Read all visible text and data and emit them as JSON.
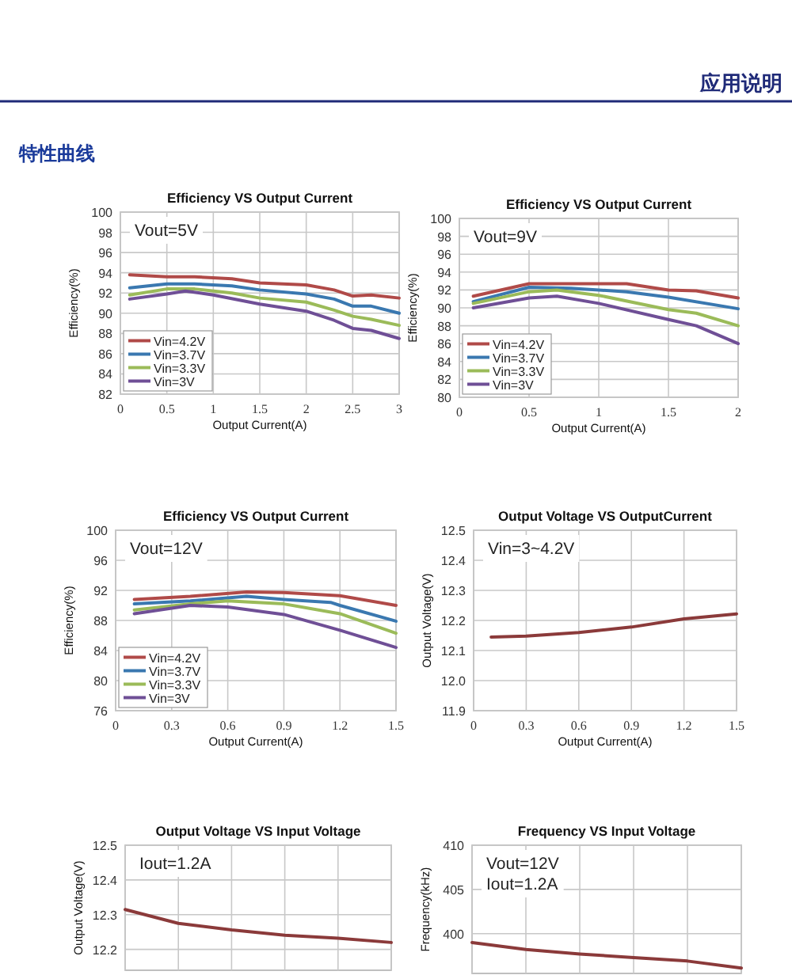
{
  "chart_data": [
    {
      "type": "other",
      "title": "应用说明",
      "annotations": [
        "特性曲线"
      ]
    },
    {
      "type": "line",
      "title": "Efficiency VS Output Current",
      "xlabel": "Output Current(A)",
      "ylabel": "Efficiency(%)",
      "xlim": [
        0,
        3
      ],
      "xticks": [
        0,
        0.5,
        1,
        1.5,
        2,
        2.5,
        3
      ],
      "ylim": [
        82,
        100
      ],
      "yticks": [
        82,
        84,
        86,
        88,
        90,
        92,
        94,
        96,
        98,
        100
      ],
      "grid": true,
      "legend": "bottom left",
      "annotations": [
        "Vout=5V"
      ],
      "series": [
        {
          "name": "Vin=4.2V",
          "color": "#b04a48",
          "x": [
            0.1,
            0.5,
            0.8,
            1.2,
            1.5,
            2.0,
            2.3,
            2.5,
            2.7,
            3
          ],
          "values": [
            93.8,
            93.6,
            93.6,
            93.4,
            93.0,
            92.8,
            92.3,
            91.7,
            91.8,
            91.5
          ]
        },
        {
          "name": "Vin=3.7V",
          "color": "#3a78b0",
          "x": [
            0.1,
            0.5,
            0.8,
            1.2,
            1.5,
            2.0,
            2.3,
            2.5,
            2.7,
            3
          ],
          "values": [
            92.5,
            92.9,
            92.9,
            92.7,
            92.3,
            91.9,
            91.4,
            90.7,
            90.7,
            90.0
          ]
        },
        {
          "name": "Vin=3.3V",
          "color": "#9bbb59",
          "x": [
            0.1,
            0.5,
            0.8,
            1.2,
            1.5,
            2.0,
            2.3,
            2.5,
            2.7,
            3
          ],
          "values": [
            91.8,
            92.4,
            92.4,
            92.0,
            91.5,
            91.1,
            90.3,
            89.7,
            89.4,
            88.8
          ]
        },
        {
          "name": "Vin=3V",
          "color": "#6f4f96",
          "x": [
            0.1,
            0.5,
            0.7,
            1.0,
            1.5,
            2.0,
            2.3,
            2.5,
            2.7,
            3
          ],
          "values": [
            91.4,
            91.9,
            92.2,
            91.8,
            90.9,
            90.2,
            89.3,
            88.5,
            88.3,
            87.5
          ]
        }
      ]
    },
    {
      "type": "line",
      "title": "Efficiency VS Output Current",
      "xlabel": "Output Current(A)",
      "ylabel": "Efficiency(%)",
      "xlim": [
        0,
        2
      ],
      "xticks": [
        0,
        0.5,
        1,
        1.5,
        2
      ],
      "ylim": [
        80,
        100
      ],
      "yticks": [
        80,
        82,
        84,
        86,
        88,
        90,
        92,
        94,
        96,
        98,
        100
      ],
      "grid": true,
      "legend": "bottom left",
      "annotations": [
        "Vout=9V"
      ],
      "series": [
        {
          "name": "Vin=4.2V",
          "color": "#b04a48",
          "x": [
            0.1,
            0.5,
            0.8,
            1.2,
            1.5,
            1.7,
            2
          ],
          "values": [
            91.3,
            92.7,
            92.7,
            92.7,
            92.0,
            91.9,
            91.1
          ]
        },
        {
          "name": "Vin=3.7V",
          "color": "#3a78b0",
          "x": [
            0.1,
            0.5,
            0.8,
            1.2,
            1.5,
            2
          ],
          "values": [
            90.7,
            92.3,
            92.2,
            91.8,
            91.2,
            89.9
          ]
        },
        {
          "name": "Vin=3.3V",
          "color": "#9bbb59",
          "x": [
            0.1,
            0.5,
            0.7,
            1.0,
            1.5,
            1.7,
            2
          ],
          "values": [
            90.5,
            91.8,
            92.0,
            91.4,
            89.8,
            89.4,
            88.0
          ]
        },
        {
          "name": "Vin=3V",
          "color": "#6f4f96",
          "x": [
            0.1,
            0.5,
            0.7,
            1.0,
            1.5,
            1.7,
            2
          ],
          "values": [
            90.0,
            91.1,
            91.3,
            90.5,
            88.7,
            88.0,
            86.0
          ]
        }
      ]
    },
    {
      "type": "line",
      "title": "Efficiency VS Output Current",
      "xlabel": "Output Current(A)",
      "ylabel": "Efficiency(%)",
      "xlim": [
        0,
        1.5
      ],
      "xticks": [
        0,
        0.3,
        0.6,
        0.9,
        1.2,
        1.5
      ],
      "ylim": [
        76,
        100
      ],
      "yticks": [
        76,
        80,
        84,
        88,
        92,
        96,
        100
      ],
      "grid": true,
      "legend": "bottom left",
      "annotations": [
        "Vout=12V"
      ],
      "series": [
        {
          "name": "Vin=4.2V",
          "color": "#b04a48",
          "x": [
            0.1,
            0.4,
            0.7,
            0.9,
            1.2,
            1.5
          ],
          "values": [
            90.8,
            91.2,
            91.8,
            91.7,
            91.3,
            90.0
          ]
        },
        {
          "name": "Vin=3.7V",
          "color": "#3a78b0",
          "x": [
            0.1,
            0.4,
            0.7,
            0.9,
            1.15,
            1.2,
            1.5
          ],
          "values": [
            90.2,
            90.6,
            91.2,
            90.8,
            90.4,
            90.0,
            87.9
          ]
        },
        {
          "name": "Vin=3.3V",
          "color": "#9bbb59",
          "x": [
            0.1,
            0.4,
            0.6,
            0.9,
            1.2,
            1.5
          ],
          "values": [
            89.4,
            90.2,
            90.6,
            90.2,
            88.9,
            86.3
          ]
        },
        {
          "name": "Vin=3V",
          "color": "#6f4f96",
          "x": [
            0.1,
            0.4,
            0.6,
            0.9,
            1.2,
            1.5
          ],
          "values": [
            88.9,
            90.0,
            89.8,
            88.8,
            86.7,
            84.4
          ]
        }
      ]
    },
    {
      "type": "line",
      "title": "Output Voltage VS OutputCurrent",
      "xlabel": "Output Current(A)",
      "ylabel": "Output Voltage(V)",
      "xlim": [
        0,
        1.5
      ],
      "xticks": [
        0,
        0.3,
        0.6,
        0.9,
        1.2,
        1.5
      ],
      "ylim": [
        11.9,
        12.5
      ],
      "yticks": [
        11.9,
        {
          "value": 12,
          "label": "12.0"
        },
        12.1,
        12.2,
        12.3,
        12.4,
        12.5
      ],
      "grid": true,
      "annotations": [
        "Vin=3~4.2V"
      ],
      "series": [
        {
          "color": "#8b3a3a",
          "x": [
            0.1,
            0.3,
            0.6,
            0.9,
            1.2,
            1.5
          ],
          "values": [
            12.145,
            12.148,
            12.16,
            12.178,
            12.205,
            12.222
          ]
        }
      ]
    },
    {
      "type": "line",
      "title": "Output Voltage VS Input Voltage",
      "ylabel": "Output Voltage(V)",
      "categories": [
        null,
        null,
        null,
        null,
        null,
        null
      ],
      "ylim": [
        12.14,
        12.5
      ],
      "yticks": [
        12.2,
        12.3,
        12.4,
        12.5
      ],
      "grid": true,
      "annotations": [
        "Iout=1.2A"
      ],
      "series": [
        {
          "color": "#8b3a3a",
          "values": [
            12.315,
            12.275,
            12.256,
            12.241,
            12.232,
            12.22
          ]
        }
      ]
    },
    {
      "type": "line",
      "title": "Frequency VS Input Voltage",
      "ylabel": "Frequency(kHz)",
      "categories": [
        null,
        null,
        null,
        null,
        null,
        null
      ],
      "ylim": [
        395.5,
        410
      ],
      "yticks": [
        400,
        405,
        410
      ],
      "grid": true,
      "annotations": [
        "Vout=12V",
        "Iout=1.2A"
      ],
      "series": [
        {
          "color": "#8b3a3a",
          "values": [
            399.0,
            398.2,
            397.7,
            397.3,
            396.9,
            396.1
          ]
        }
      ]
    }
  ]
}
